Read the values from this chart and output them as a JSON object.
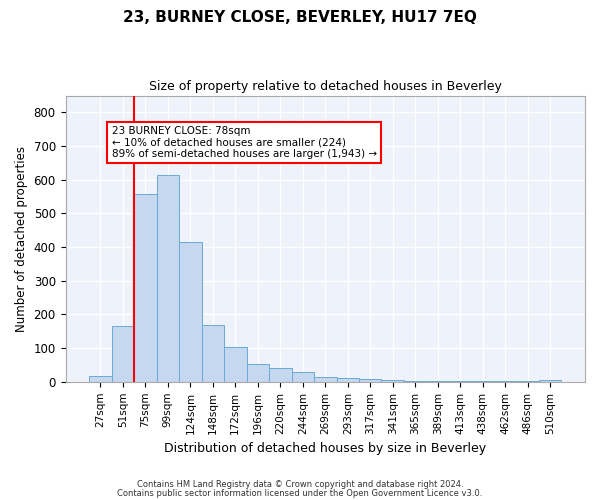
{
  "title": "23, BURNEY CLOSE, BEVERLEY, HU17 7EQ",
  "subtitle": "Size of property relative to detached houses in Beverley",
  "xlabel": "Distribution of detached houses by size in Beverley",
  "ylabel": "Number of detached properties",
  "bar_color": "#c5d8f0",
  "bar_edge_color": "#6aaad4",
  "background_color": "#eef2fa",
  "grid_color": "#ffffff",
  "categories": [
    "27sqm",
    "51sqm",
    "75sqm",
    "99sqm",
    "124sqm",
    "148sqm",
    "172sqm",
    "196sqm",
    "220sqm",
    "244sqm",
    "269sqm",
    "293sqm",
    "317sqm",
    "341sqm",
    "365sqm",
    "389sqm",
    "413sqm",
    "438sqm",
    "462sqm",
    "486sqm",
    "510sqm"
  ],
  "values": [
    18,
    165,
    558,
    613,
    415,
    170,
    102,
    52,
    42,
    30,
    14,
    10,
    7,
    4,
    3,
    3,
    2,
    1,
    1,
    1,
    6
  ],
  "property_label": "23 BURNEY CLOSE: 78sqm",
  "annotation_line1": "← 10% of detached houses are smaller (224)",
  "annotation_line2": "89% of semi-detached houses are larger (1,943) →",
  "vline_x_index": 2,
  "ylim": [
    0,
    850
  ],
  "yticks": [
    0,
    100,
    200,
    300,
    400,
    500,
    600,
    700,
    800
  ],
  "footnote1": "Contains HM Land Registry data © Crown copyright and database right 2024.",
  "footnote2": "Contains public sector information licensed under the Open Government Licence v3.0."
}
